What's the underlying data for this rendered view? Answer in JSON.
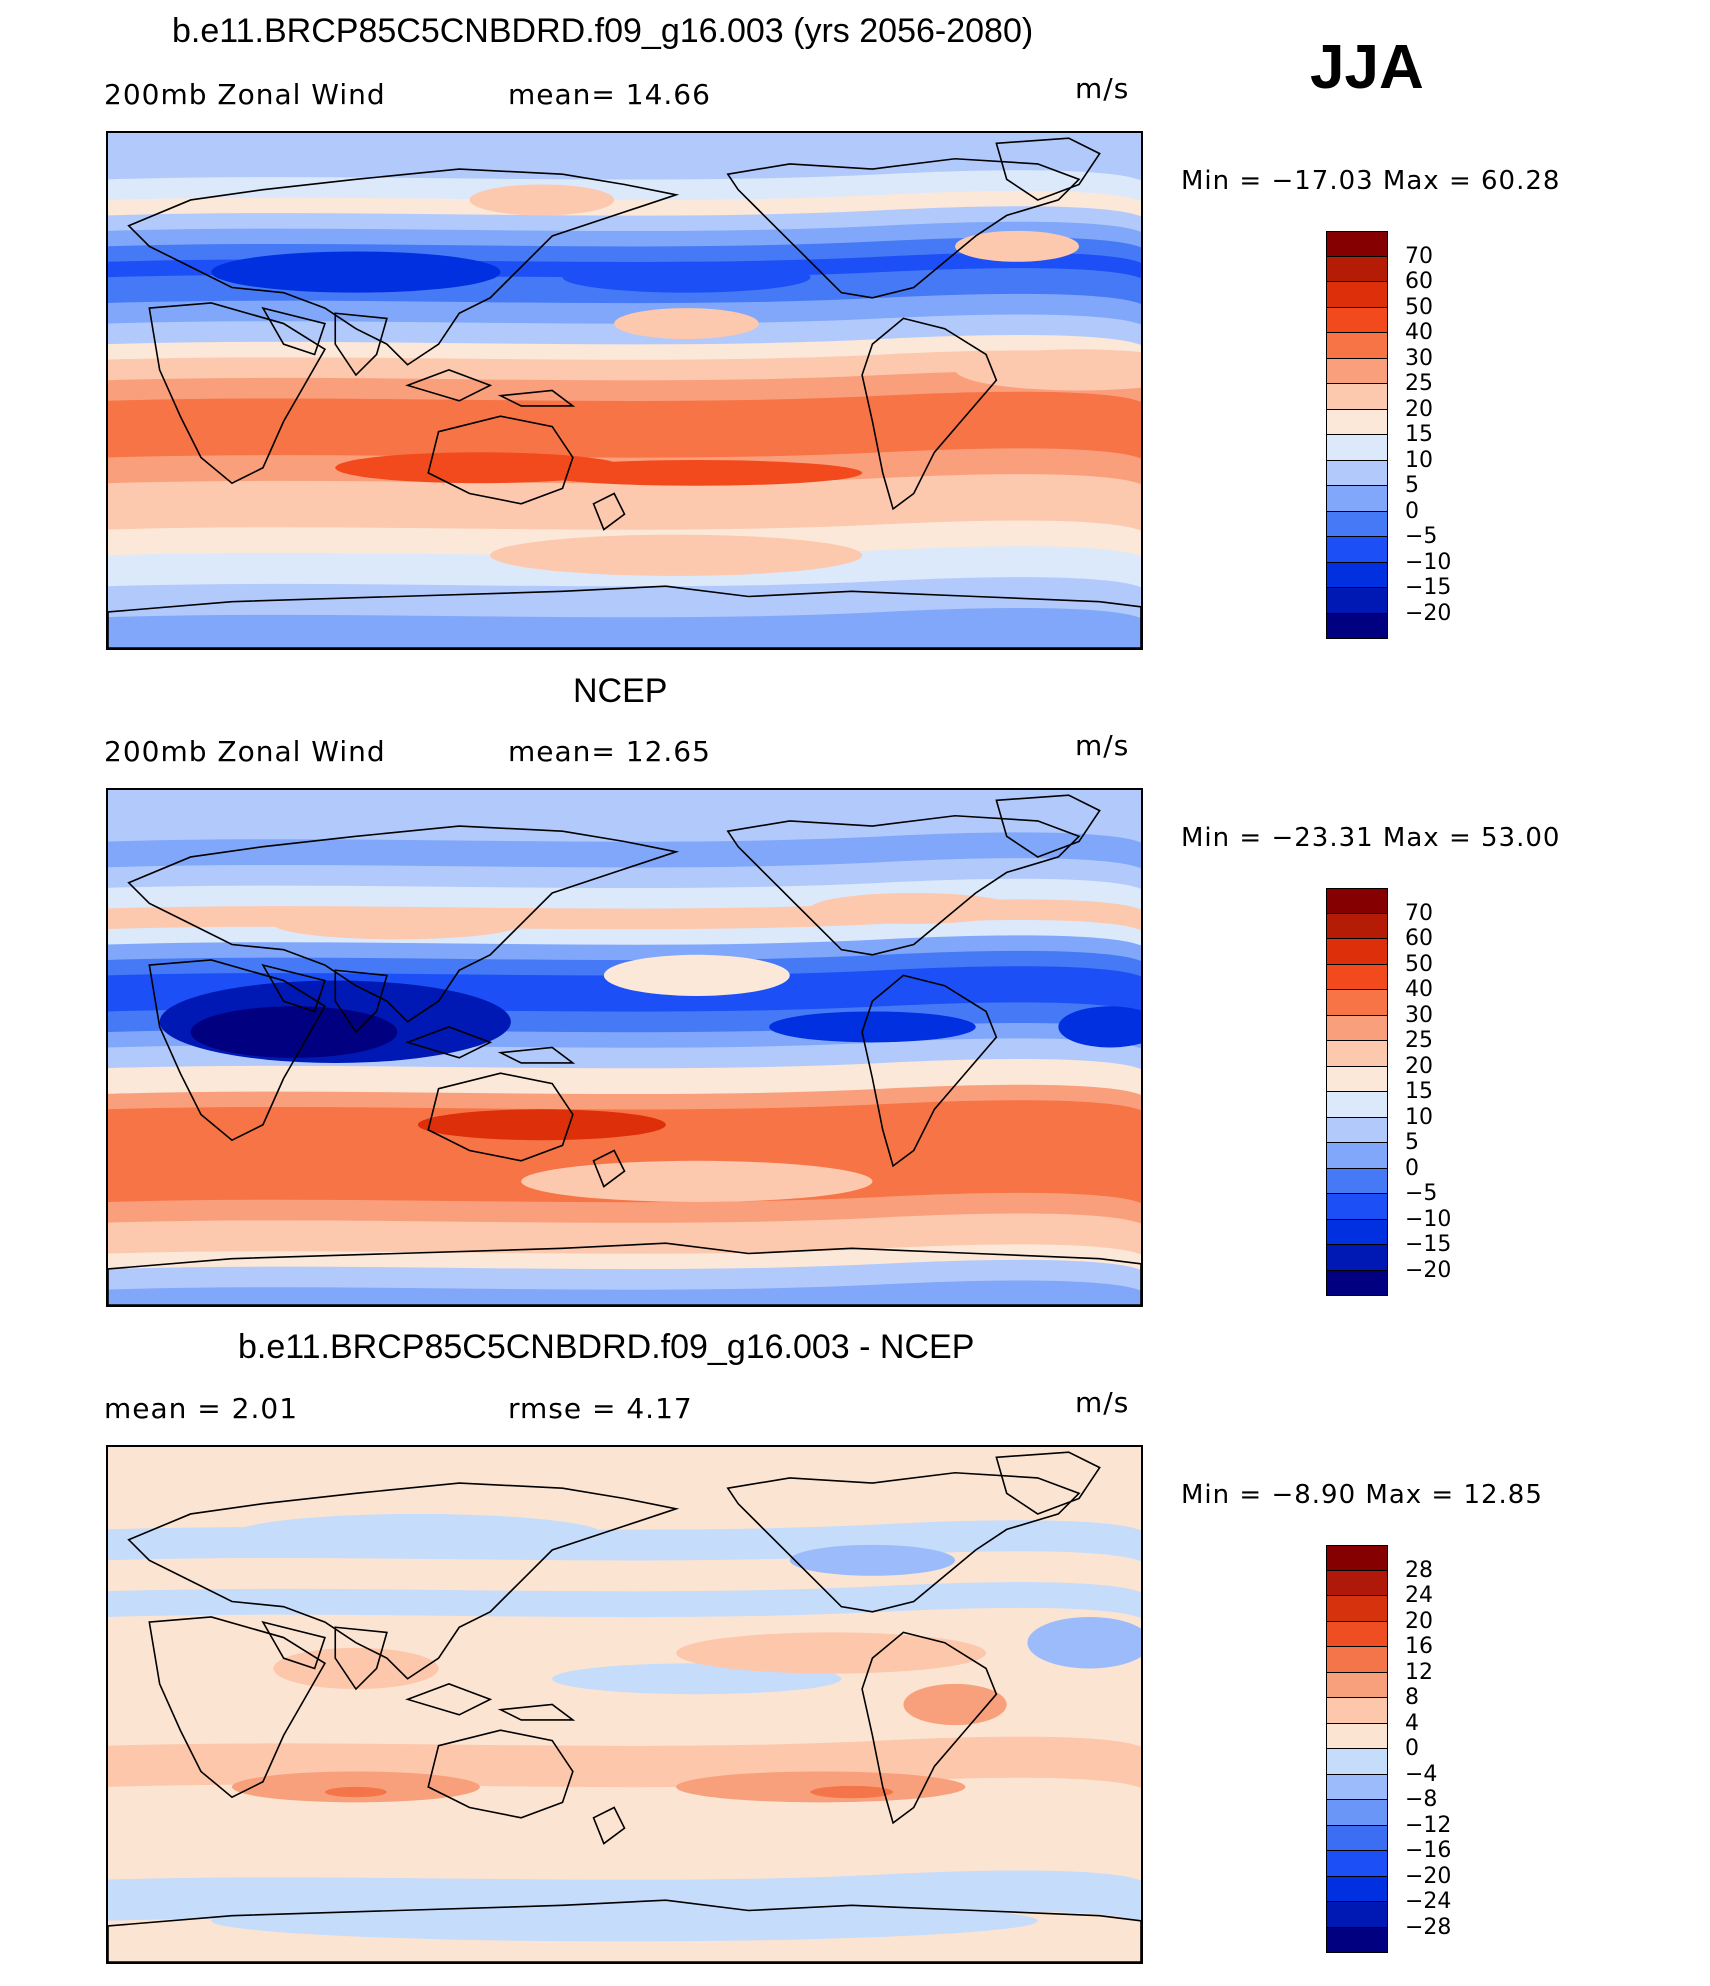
{
  "season": "JJA",
  "colors": {
    "full_field": [
      "#000080",
      "#0018b4",
      "#0030e0",
      "#1c4ff6",
      "#4579f5",
      "#80a7f9",
      "#b2cafb",
      "#dbe9fb",
      "#fbe8d8",
      "#fcc8ae",
      "#fa9f7c",
      "#f67445",
      "#f24a1d",
      "#dc2f0a",
      "#b51c06",
      "#850000"
    ],
    "difference": [
      "#000080",
      "#0018b4",
      "#0030e0",
      "#1c4ff6",
      "#3c6ef4",
      "#6a97f7",
      "#9bbbfa",
      "#c5dcfb",
      "#fce4d2",
      "#fcc7ab",
      "#f8a07c",
      "#f37549",
      "#ef4e23",
      "#d6320d",
      "#b0190a",
      "#850000"
    ]
  },
  "panels": [
    {
      "title": "b.e11.BRCP85C5CNBDRD.f09_g16.003 (yrs 2056-2080)",
      "left_text": "200mb  Zonal Wind",
      "center_text": "mean=   14.66",
      "units": "m/s",
      "minmax": "Min  =  −17.03  Max  =    60.28",
      "colorbar_labels": [
        "70",
        "60",
        "50",
        "40",
        "30",
        "25",
        "20",
        "15",
        "10",
        "5",
        "0",
        "−5",
        "−10",
        "−15",
        "−20"
      ],
      "bands": [
        {
          "y": 0,
          "c": 6
        },
        {
          "y": 9,
          "c": 7
        },
        {
          "y": 13,
          "c": 8
        },
        {
          "y": 16,
          "c": 6
        },
        {
          "y": 19,
          "c": 5
        },
        {
          "y": 22,
          "c": 4
        },
        {
          "y": 25,
          "c": 3
        },
        {
          "y": 28,
          "c": 4
        },
        {
          "y": 33,
          "c": 5
        },
        {
          "y": 37,
          "c": 6
        },
        {
          "y": 41,
          "c": 8
        },
        {
          "y": 44,
          "c": 9
        },
        {
          "y": 48,
          "c": 10
        },
        {
          "y": 52,
          "c": 11
        },
        {
          "y": 56,
          "c": 11
        },
        {
          "y": 63,
          "c": 10
        },
        {
          "y": 68,
          "c": 9
        },
        {
          "y": 77,
          "c": 8
        },
        {
          "y": 82,
          "c": 7
        },
        {
          "y": 88,
          "c": 6
        },
        {
          "y": 94,
          "c": 5
        }
      ],
      "blobs": [
        {
          "cx": 24,
          "cy": 27,
          "rx": 14,
          "ry": 4,
          "c": 2
        },
        {
          "cx": 56,
          "cy": 28,
          "rx": 12,
          "ry": 3,
          "c": 3
        },
        {
          "cx": 94,
          "cy": 46,
          "rx": 12,
          "ry": 4,
          "c": 9
        },
        {
          "cx": 42,
          "cy": 13,
          "rx": 7,
          "ry": 3,
          "c": 9
        },
        {
          "cx": 56,
          "cy": 37,
          "rx": 7,
          "ry": 3,
          "c": 9
        },
        {
          "cx": 88,
          "cy": 22,
          "rx": 6,
          "ry": 3,
          "c": 9
        },
        {
          "cx": 36,
          "cy": 65,
          "rx": 14,
          "ry": 3,
          "c": 12
        },
        {
          "cx": 57,
          "cy": 66,
          "rx": 16,
          "ry": 2.5,
          "c": 12
        },
        {
          "cx": 55,
          "cy": 82,
          "rx": 18,
          "ry": 4,
          "c": 9
        }
      ]
    },
    {
      "title": "NCEP",
      "left_text": "200mb  Zonal Wind",
      "center_text": "mean=   12.65",
      "units": "m/s",
      "minmax": "Min  =  −23.31  Max  =    53.00",
      "colorbar_labels": [
        "70",
        "60",
        "50",
        "40",
        "30",
        "25",
        "20",
        "15",
        "10",
        "5",
        "0",
        "−5",
        "−10",
        "−15",
        "−20"
      ],
      "bands": [
        {
          "y": 0,
          "c": 6
        },
        {
          "y": 10,
          "c": 5
        },
        {
          "y": 15,
          "c": 6
        },
        {
          "y": 19,
          "c": 7
        },
        {
          "y": 23,
          "c": 9
        },
        {
          "y": 27,
          "c": 7
        },
        {
          "y": 30,
          "c": 5
        },
        {
          "y": 33,
          "c": 4
        },
        {
          "y": 36,
          "c": 3
        },
        {
          "y": 43,
          "c": 4
        },
        {
          "y": 47,
          "c": 5
        },
        {
          "y": 50,
          "c": 6
        },
        {
          "y": 54,
          "c": 8
        },
        {
          "y": 59,
          "c": 10
        },
        {
          "y": 62,
          "c": 11
        },
        {
          "y": 80,
          "c": 10
        },
        {
          "y": 84,
          "c": 9
        },
        {
          "y": 90,
          "c": 8
        },
        {
          "y": 93,
          "c": 6
        },
        {
          "y": 97,
          "c": 5
        }
      ],
      "blobs": [
        {
          "cx": 22,
          "cy": 45,
          "rx": 17,
          "ry": 8,
          "c": 1
        },
        {
          "cx": 18,
          "cy": 47,
          "rx": 10,
          "ry": 5,
          "c": 0
        },
        {
          "cx": 74,
          "cy": 46,
          "rx": 10,
          "ry": 3,
          "c": 2
        },
        {
          "cx": 97,
          "cy": 46,
          "rx": 5,
          "ry": 4,
          "c": 2
        },
        {
          "cx": 57,
          "cy": 36,
          "rx": 9,
          "ry": 4,
          "c": 8
        },
        {
          "cx": 42,
          "cy": 65,
          "rx": 12,
          "ry": 3,
          "c": 13
        },
        {
          "cx": 57,
          "cy": 76,
          "rx": 17,
          "ry": 4,
          "c": 9
        },
        {
          "cx": 28,
          "cy": 26,
          "rx": 12,
          "ry": 3,
          "c": 9
        },
        {
          "cx": 78,
          "cy": 23,
          "rx": 10,
          "ry": 3,
          "c": 9
        }
      ]
    },
    {
      "title": "b.e11.BRCP85C5CNBDRD.f09_g16.003 - NCEP",
      "left_text": "mean  =     2.01",
      "center_text": "rmse  =     4.17",
      "units": "m/s",
      "minmax": "Min  =     −8.90  Max  =    12.85",
      "colorbar_labels": [
        "28",
        "24",
        "20",
        "16",
        "12",
        "8",
        "4",
        "0",
        "−4",
        "−8",
        "−12",
        "−16",
        "−20",
        "−24",
        "−28"
      ],
      "bands": [
        {
          "y": 0,
          "c": 8
        },
        {
          "y": 16,
          "c": 7
        },
        {
          "y": 22,
          "c": 8
        },
        {
          "y": 28,
          "c": 7
        },
        {
          "y": 33,
          "c": 8
        },
        {
          "y": 42,
          "c": 8
        },
        {
          "y": 58,
          "c": 9
        },
        {
          "y": 66,
          "c": 8
        },
        {
          "y": 72,
          "c": 8
        },
        {
          "y": 84,
          "c": 7
        },
        {
          "y": 92,
          "c": 8
        }
      ],
      "blobs": [
        {
          "cx": 30,
          "cy": 17,
          "rx": 18,
          "ry": 4,
          "c": 7
        },
        {
          "cx": 74,
          "cy": 22,
          "rx": 8,
          "ry": 3,
          "c": 6
        },
        {
          "cx": 57,
          "cy": 45,
          "rx": 14,
          "ry": 3,
          "c": 7
        },
        {
          "cx": 95,
          "cy": 38,
          "rx": 6,
          "ry": 5,
          "c": 6
        },
        {
          "cx": 24,
          "cy": 43,
          "rx": 8,
          "ry": 4,
          "c": 9
        },
        {
          "cx": 70,
          "cy": 40,
          "rx": 15,
          "ry": 4,
          "c": 9
        },
        {
          "cx": 82,
          "cy": 50,
          "rx": 5,
          "ry": 4,
          "c": 10
        },
        {
          "cx": 24,
          "cy": 66,
          "rx": 12,
          "ry": 3,
          "c": 10
        },
        {
          "cx": 69,
          "cy": 66,
          "rx": 14,
          "ry": 3,
          "c": 10
        },
        {
          "cx": 72,
          "cy": 67,
          "rx": 4,
          "ry": 1.2,
          "c": 11
        },
        {
          "cx": 24,
          "cy": 67,
          "rx": 3,
          "ry": 1,
          "c": 11
        },
        {
          "cx": 50,
          "cy": 92,
          "rx": 40,
          "ry": 4,
          "c": 7
        }
      ]
    }
  ]
}
